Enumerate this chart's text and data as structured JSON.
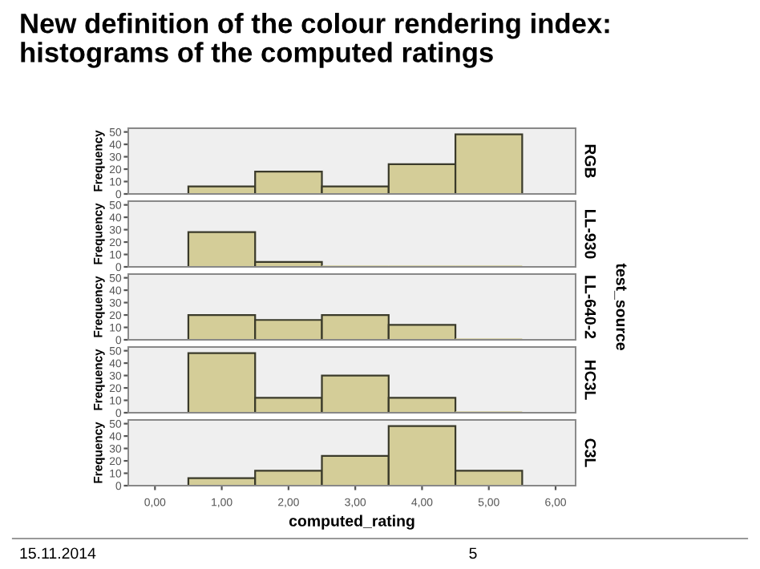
{
  "chart_data": [
    {
      "type": "histogram",
      "title": "New definition of the colour rendering index:\nhistograms of the computed ratings",
      "ylabel": "Frequency",
      "y2label": "RGB",
      "bins": [
        0.5,
        1.5,
        2.5,
        3.5,
        4.5,
        5.5
      ],
      "values": [
        6,
        18,
        6,
        24,
        48
      ],
      "color": "#d4cd98",
      "xlim": [
        -0.4,
        6.3
      ],
      "ylim": [
        0,
        53
      ],
      "yticks": [
        0,
        10,
        20,
        30,
        40,
        50
      ],
      "tick_labels": "y",
      "grid": false
    },
    {
      "type": "histogram",
      "ylabel": "Frequency",
      "y2label": "LL-930",
      "bins": [
        0.5,
        1.5,
        2.5,
        3.5,
        4.5,
        5.5
      ],
      "values": [
        28,
        4,
        0,
        0,
        0
      ],
      "color": "#d4cd98",
      "xlim": [
        -0.4,
        6.3
      ],
      "ylim": [
        0,
        53
      ],
      "yticks": [
        0,
        10,
        20,
        30,
        40,
        50
      ],
      "tick_labels": "y",
      "grid": false
    },
    {
      "type": "histogram",
      "ylabel": "Frequency",
      "y2label": "LL-640-2",
      "annotations": [
        "test_source"
      ],
      "bins": [
        0.5,
        1.5,
        2.5,
        3.5,
        4.5,
        5.5
      ],
      "values": [
        20,
        16,
        20,
        12,
        0
      ],
      "color": "#d4cd98",
      "xlim": [
        -0.4,
        6.3
      ],
      "ylim": [
        0,
        53
      ],
      "yticks": [
        0,
        10,
        20,
        30,
        40,
        50
      ],
      "tick_labels": "y",
      "grid": false
    },
    {
      "type": "histogram",
      "ylabel": "Frequency",
      "y2label": "HC3L",
      "bins": [
        0.5,
        1.5,
        2.5,
        3.5,
        4.5,
        5.5
      ],
      "values": [
        48,
        12,
        30,
        12,
        0
      ],
      "color": "#d4cd98",
      "xlim": [
        -0.4,
        6.3
      ],
      "ylim": [
        0,
        53
      ],
      "yticks": [
        0,
        10,
        20,
        30,
        40,
        50
      ],
      "tick_labels": "y",
      "grid": false
    },
    {
      "type": "histogram",
      "ylabel": "Frequency",
      "y2label": "C3L",
      "xlabel": "computed_rating",
      "annotations": [
        "15.11.2014",
        "5"
      ],
      "bins": [
        0.5,
        1.5,
        2.5,
        3.5,
        4.5,
        5.5
      ],
      "values": [
        6,
        12,
        24,
        48,
        12
      ],
      "color": "#d4cd98",
      "xlim": [
        -0.4,
        6.3
      ],
      "ylim": [
        0,
        53
      ],
      "yticks": [
        0,
        10,
        20,
        30,
        40,
        50
      ],
      "xticks": [
        {
          "value": 0,
          "label": "0,00"
        },
        {
          "value": 1,
          "label": "1,00"
        },
        {
          "value": 2,
          "label": "2,00"
        },
        {
          "value": 3,
          "label": "3,00"
        },
        {
          "value": 4,
          "label": "4,00"
        },
        {
          "value": 5,
          "label": "5,00"
        },
        {
          "value": 6,
          "label": "6,00"
        }
      ],
      "grid": false
    }
  ]
}
